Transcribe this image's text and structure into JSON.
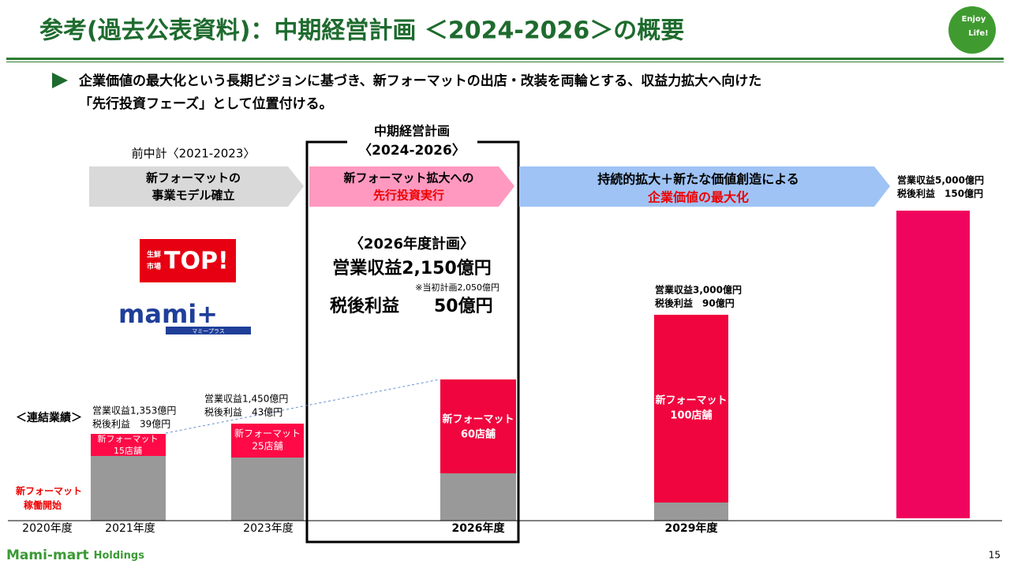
{
  "header": {
    "title": "参考(過去公表資料)：中期経営計画 ＜2024-2026＞の概要",
    "logo": [
      "Enjoy",
      "Life!"
    ]
  },
  "bullet": [
    "企業価値の最大化という長期ビジョンに基づき、新フォーマットの出店・改装を両輪とする、収益力拡大へ向けた",
    "「先行投資フェーズ」として位置付ける。"
  ],
  "previous_plan": "前中計〈2021-2023〉",
  "plan_box": {
    "title": [
      "中期経営計画",
      "〈2024-2026〉"
    ],
    "plan_title": "〈2026年度計画〉",
    "revenue": "営業収益2,150億円",
    "note": "※当初計画2,050億円",
    "profit": "税後利益　　50億円"
  },
  "phases": [
    {
      "lines": [
        "新フォーマットの",
        "事業モデル確立"
      ]
    },
    {
      "lines": [
        "新フォーマット拡大への",
        "先行投資実行"
      ]
    },
    {
      "lines": [
        "持続的拡大＋新たな価値創造による",
        "企業価値の最大化"
      ]
    }
  ],
  "brands": {
    "top": [
      "生鮮",
      "市場",
      "TOP!"
    ],
    "mami": [
      "mami+",
      "マミープラス"
    ]
  },
  "results_label": "＜連結業績＞",
  "start_label": [
    "新フォーマット",
    "稼働開始"
  ],
  "columns": [
    {
      "year": "2020年度"
    },
    {
      "year": "2021年度",
      "figures": [
        "営業収益1,353億円",
        "税後利益　39億円"
      ],
      "bar": [
        "新フォーマット",
        "15店舗"
      ]
    },
    {
      "year": "2023年度",
      "figures": [
        "営業収益1,450億円",
        "税後利益　43億円"
      ],
      "bar": [
        "新フォーマット",
        "25店舗"
      ]
    },
    {
      "year": "2026年度",
      "bar": [
        "新フォーマット",
        "60店舗"
      ]
    },
    {
      "year": "2029年度",
      "figures": [
        "営業収益3,000億円",
        "税後利益　90億円"
      ],
      "bar": [
        "新フォーマット",
        "100店舗"
      ]
    },
    {
      "figures": [
        "営業収益5,000億円",
        "税後利益　150億円"
      ]
    }
  ],
  "footer": {
    "company": "Mami-mart",
    "company_suffix": "Holdings",
    "page": "15"
  }
}
